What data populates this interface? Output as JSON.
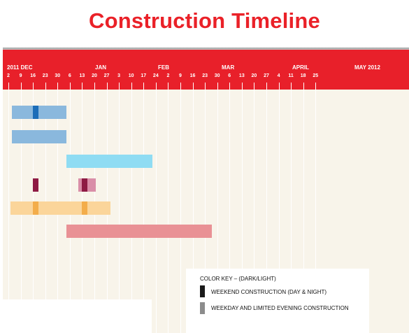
{
  "chart_data": {
    "type": "gantt",
    "title": "Construction Timeline",
    "x_axis": {
      "months": [
        "2011  DEC",
        "JAN",
        "FEB",
        "MAR",
        "APRIL",
        "MAY 2012"
      ],
      "days": [
        "2",
        "9",
        "16",
        "23",
        "30",
        "6",
        "13",
        "20",
        "27",
        "3",
        "10",
        "17",
        "24",
        "2",
        "9",
        "16",
        "23",
        "30",
        "6",
        "13",
        "20",
        "27",
        "4",
        "11",
        "18",
        "25"
      ],
      "range": [
        "2011-12-02",
        "2012-05-25"
      ]
    },
    "tasks": [
      {
        "start": "2011-12-04",
        "end": "2012-01-04",
        "color": "#8ab8dd",
        "marks": [
          {
            "date": "2011-12-17",
            "color": "#1c6db8"
          }
        ]
      },
      {
        "start": "2011-12-04",
        "end": "2012-01-04",
        "color": "#8ab8dd",
        "marks": []
      },
      {
        "start": "2012-01-04",
        "end": "2012-02-22",
        "color": "#8fdcf3",
        "marks": []
      },
      {
        "start": "2012-01-11",
        "end": "2012-01-21",
        "color": "#d98ea8",
        "marks": [
          {
            "date": "2011-12-17",
            "color": "#8e1b44"
          },
          {
            "date": "2012-01-14",
            "color": "#8e1b44"
          }
        ]
      },
      {
        "start": "2011-12-03",
        "end": "2012-01-29",
        "color": "#fbd59a",
        "marks": [
          {
            "date": "2011-12-17",
            "color": "#f3ad4b"
          },
          {
            "date": "2012-01-14",
            "color": "#f3ad4b"
          }
        ]
      },
      {
        "start": "2012-01-04",
        "end": "2012-03-27",
        "color": "#e99195",
        "marks": []
      }
    ],
    "grid": true
  },
  "legend": {
    "title": "COLOR KEY – (DARK/LIGHT)",
    "items": [
      {
        "label": "WEEKEND CONSTRUCTION (DAY & NIGHT)",
        "color": "#1a1a1a"
      },
      {
        "label": "WEEKDAY AND LIMITED EVENING CONSTRUCTION",
        "color": "#8c8c8c"
      }
    ]
  }
}
